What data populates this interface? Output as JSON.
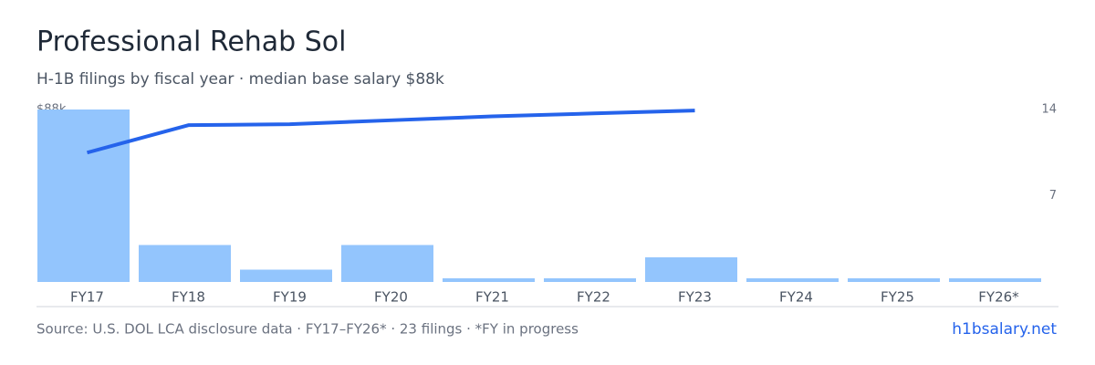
{
  "chart_data": {
    "type": "bar",
    "title": "Professional Rehab Sol",
    "subtitle": "H-1B filings by fiscal year · median base salary $88k",
    "categories": [
      "FY17",
      "FY18",
      "FY19",
      "FY20",
      "FY21",
      "FY22",
      "FY23",
      "FY24",
      "FY25",
      "FY26*"
    ],
    "series": [
      {
        "type": "bar",
        "axis": "y2",
        "color": "#93c5fd",
        "values": [
          14,
          3,
          1,
          3,
          0,
          0,
          2,
          0,
          0,
          0
        ]
      },
      {
        "type": "line",
        "color": "#2563eb",
        "values": [
          66000,
          80000,
          80500,
          82500,
          84500,
          86000,
          87500,
          null,
          null,
          null
        ]
      }
    ],
    "ylim": [
      0,
      88000
    ],
    "yticks": [
      {
        "value": 88000,
        "label": "$88k"
      }
    ],
    "y2lim": [
      0,
      14
    ],
    "y2ticks": [
      7,
      14
    ],
    "source": "Source: U.S. DOL LCA disclosure data · FY17–FY26* · 23 filings · *FY in progress",
    "brand": "h1bsalary.net"
  }
}
